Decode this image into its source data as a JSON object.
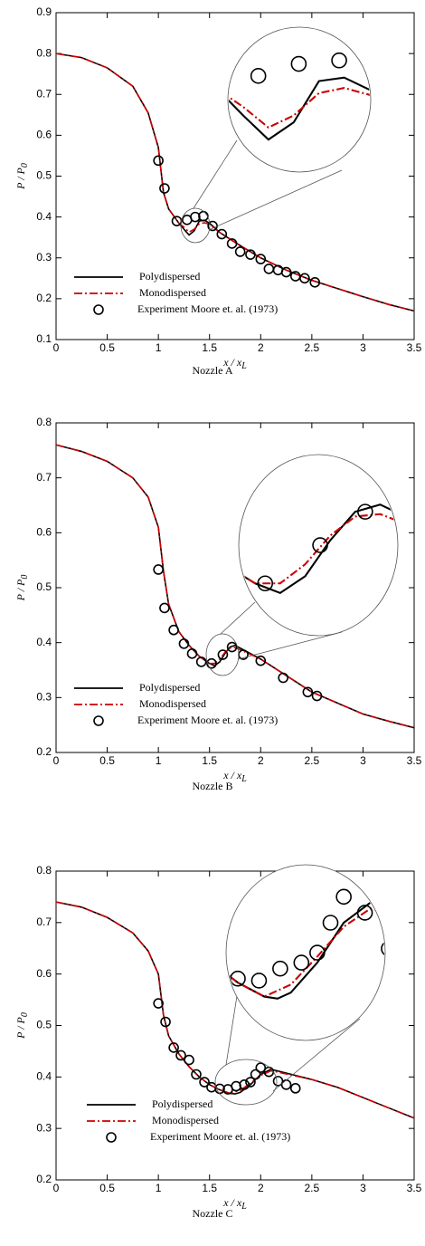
{
  "chart_data": [
    {
      "type": "line",
      "caption": "Nozzle A",
      "xlabel": {
        "main": "x / x",
        "sub": "L"
      },
      "ylabel": {
        "main": "P / P",
        "sub": "0"
      },
      "xlim": [
        0,
        3.5
      ],
      "ylim": [
        0.1,
        0.9
      ],
      "xticks": [
        0,
        0.5,
        1,
        1.5,
        2,
        2.5,
        3,
        3.5
      ],
      "yticks": [
        0.1,
        0.2,
        0.3,
        0.4,
        0.5,
        0.6,
        0.7,
        0.8,
        0.9
      ],
      "legend": "lower left",
      "x": [
        0,
        0.25,
        0.5,
        0.75,
        0.9,
        1.0,
        1.05,
        1.1,
        1.2,
        1.25,
        1.3,
        1.35,
        1.4,
        1.45,
        1.5,
        1.6,
        1.8,
        2.0,
        2.25,
        2.5,
        2.75,
        3.0,
        3.25,
        3.5
      ],
      "series": [
        {
          "name": "Polydispersed",
          "color": "#000000",
          "style": "solid",
          "values": [
            0.8,
            0.79,
            0.765,
            0.72,
            0.655,
            0.57,
            0.46,
            0.42,
            0.385,
            0.37,
            0.356,
            0.366,
            0.39,
            0.392,
            0.385,
            0.362,
            0.33,
            0.3,
            0.27,
            0.245,
            0.225,
            0.205,
            0.186,
            0.17
          ]
        },
        {
          "name": "Monodispersed",
          "color": "#cc0000",
          "style": "dashdot",
          "values": [
            0.8,
            0.79,
            0.765,
            0.72,
            0.655,
            0.57,
            0.46,
            0.42,
            0.385,
            0.375,
            0.363,
            0.37,
            0.383,
            0.386,
            0.382,
            0.362,
            0.33,
            0.3,
            0.27,
            0.245,
            0.225,
            0.205,
            0.186,
            0.17
          ]
        },
        {
          "name": "Experiment Moore et. al. (1973)",
          "color": "#000000",
          "style": "markers",
          "x": [
            1.0,
            1.06,
            1.18,
            1.28,
            1.36,
            1.44,
            1.53,
            1.62,
            1.72,
            1.8,
            1.9,
            2.0,
            2.08,
            2.17,
            2.25,
            2.34,
            2.43,
            2.53
          ],
          "values": [
            0.538,
            0.47,
            0.39,
            0.393,
            0.4,
            0.402,
            0.378,
            0.358,
            0.335,
            0.315,
            0.308,
            0.297,
            0.273,
            0.27,
            0.265,
            0.255,
            0.25,
            0.24
          ]
        }
      ]
    },
    {
      "type": "line",
      "caption": "Nozzle B",
      "xlabel": {
        "main": "x / x",
        "sub": "L"
      },
      "ylabel": {
        "main": "P / P",
        "sub": "0"
      },
      "xlim": [
        0,
        3.5
      ],
      "ylim": [
        0.2,
        0.8
      ],
      "xticks": [
        0,
        0.5,
        1,
        1.5,
        2,
        2.5,
        3,
        3.5
      ],
      "yticks": [
        0.2,
        0.3,
        0.4,
        0.5,
        0.6,
        0.7,
        0.8
      ],
      "legend": "lower left",
      "x": [
        0,
        0.25,
        0.5,
        0.75,
        0.9,
        1.0,
        1.05,
        1.1,
        1.2,
        1.3,
        1.4,
        1.5,
        1.55,
        1.6,
        1.65,
        1.7,
        1.75,
        1.8,
        2.0,
        2.25,
        2.5,
        2.75,
        3.0,
        3.25,
        3.5
      ],
      "series": [
        {
          "name": "Polydispersed",
          "color": "#000000",
          "style": "solid",
          "values": [
            0.76,
            0.748,
            0.73,
            0.7,
            0.665,
            0.61,
            0.53,
            0.47,
            0.42,
            0.395,
            0.375,
            0.362,
            0.358,
            0.365,
            0.38,
            0.392,
            0.395,
            0.39,
            0.37,
            0.34,
            0.31,
            0.29,
            0.27,
            0.257,
            0.245
          ]
        },
        {
          "name": "Monodispersed",
          "color": "#cc0000",
          "style": "dashdot",
          "values": [
            0.76,
            0.748,
            0.73,
            0.7,
            0.665,
            0.61,
            0.53,
            0.47,
            0.42,
            0.395,
            0.375,
            0.362,
            0.362,
            0.37,
            0.382,
            0.39,
            0.391,
            0.387,
            0.37,
            0.34,
            0.31,
            0.29,
            0.27,
            0.257,
            0.245
          ]
        },
        {
          "name": "Experiment Moore et. al. (1973)",
          "color": "#000000",
          "style": "markers",
          "x": [
            1.0,
            1.06,
            1.15,
            1.25,
            1.33,
            1.42,
            1.52,
            1.63,
            1.72,
            1.83,
            2.0,
            2.22,
            2.46,
            2.55
          ],
          "values": [
            0.533,
            0.463,
            0.423,
            0.398,
            0.38,
            0.365,
            0.362,
            0.378,
            0.392,
            0.378,
            0.367,
            0.336,
            0.31,
            0.303
          ]
        }
      ]
    },
    {
      "type": "line",
      "caption": "Nozzle C",
      "xlabel": {
        "main": "x / x",
        "sub": "L"
      },
      "ylabel": {
        "main": "P / P",
        "sub": "0"
      },
      "xlim": [
        0,
        3.5
      ],
      "ylim": [
        0.2,
        0.8
      ],
      "xticks": [
        0,
        0.5,
        1,
        1.5,
        2,
        2.5,
        3,
        3.5
      ],
      "yticks": [
        0.2,
        0.3,
        0.4,
        0.5,
        0.6,
        0.7,
        0.8
      ],
      "legend": "lower left",
      "x": [
        0,
        0.25,
        0.5,
        0.75,
        0.9,
        1.0,
        1.05,
        1.1,
        1.2,
        1.3,
        1.4,
        1.5,
        1.6,
        1.7,
        1.75,
        1.8,
        1.9,
        2.0,
        2.1,
        2.2,
        2.5,
        2.75,
        3.0,
        3.25,
        3.5
      ],
      "series": [
        {
          "name": "Polydispersed",
          "color": "#000000",
          "style": "solid",
          "values": [
            0.74,
            0.73,
            0.71,
            0.68,
            0.645,
            0.6,
            0.52,
            0.48,
            0.445,
            0.42,
            0.4,
            0.385,
            0.375,
            0.368,
            0.367,
            0.37,
            0.385,
            0.405,
            0.415,
            0.41,
            0.395,
            0.38,
            0.36,
            0.34,
            0.32
          ]
        },
        {
          "name": "Monodispersed",
          "color": "#cc0000",
          "style": "dashdot",
          "values": [
            0.74,
            0.73,
            0.71,
            0.68,
            0.645,
            0.6,
            0.52,
            0.48,
            0.445,
            0.42,
            0.4,
            0.385,
            0.375,
            0.368,
            0.371,
            0.374,
            0.388,
            0.403,
            0.412,
            0.408,
            0.395,
            0.38,
            0.36,
            0.34,
            0.32
          ]
        },
        {
          "name": "Experiment Moore et. al. (1973)",
          "color": "#000000",
          "style": "markers",
          "x": [
            1.0,
            1.07,
            1.15,
            1.22,
            1.3,
            1.37,
            1.45,
            1.52,
            1.6,
            1.68,
            1.76,
            1.84,
            1.9,
            1.95,
            2.0,
            2.08,
            2.17,
            2.25,
            2.34
          ],
          "values": [
            0.543,
            0.507,
            0.457,
            0.442,
            0.433,
            0.405,
            0.39,
            0.38,
            0.377,
            0.376,
            0.382,
            0.385,
            0.39,
            0.405,
            0.418,
            0.41,
            0.392,
            0.385,
            0.378
          ]
        }
      ]
    }
  ]
}
